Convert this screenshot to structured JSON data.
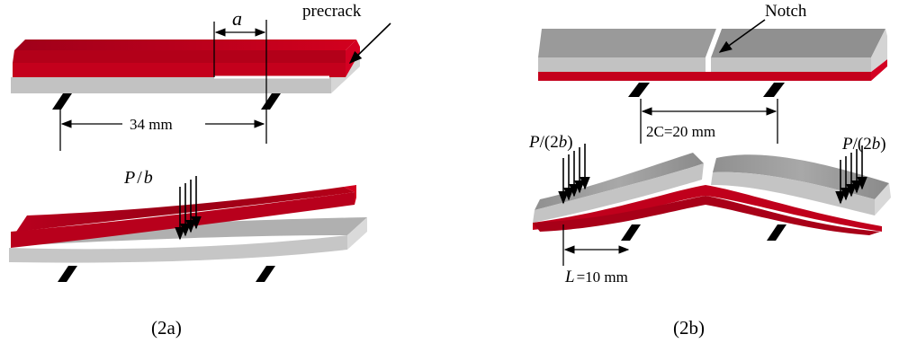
{
  "panel_a": {
    "crack_symbol": "a",
    "precrack_label": "precrack",
    "span_label": "34 mm",
    "load_var": "P",
    "load_div": "/",
    "load_den": "b",
    "caption": "(2a)"
  },
  "panel_b": {
    "notch_label": "Notch",
    "span_label": "2C=20 mm",
    "load_var": "P",
    "load_den_open": "/(2",
    "load_den_var": "b",
    "load_den_close": ")",
    "length_var": "L",
    "length_value": "=10 mm",
    "caption": "(2b)"
  },
  "colors": {
    "red_face": "#c8001e",
    "red_dark": "#8e0010",
    "grey_face": "#8c8c8c",
    "grey_side": "#b9b9b9",
    "grey_light": "#dedede",
    "support": "#000000"
  }
}
